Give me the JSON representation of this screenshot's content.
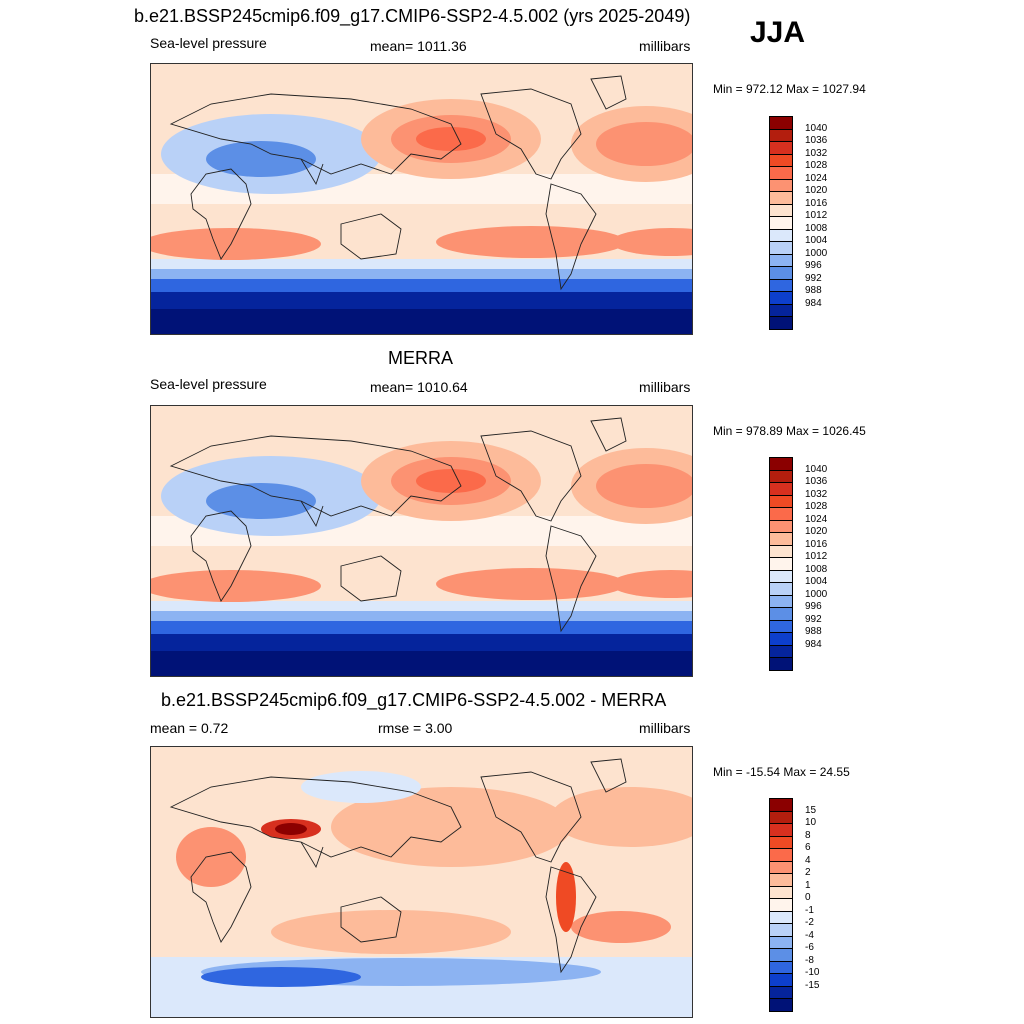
{
  "season": "JJA",
  "panels": [
    {
      "title": "b.e21.BSSP245cmip6.f09_g17.CMIP6-SSP2-4.5.002 (yrs 2025-2049)",
      "left": "Sea-level pressure",
      "center": "mean= 1011.36",
      "right": "millibars",
      "minmax": "Min = 972.12 Max = 1027.94"
    },
    {
      "title": "MERRA",
      "left": "Sea-level pressure",
      "center": "mean= 1010.64",
      "right": "millibars",
      "minmax": "Min = 978.89 Max = 1026.45"
    },
    {
      "title": "b.e21.BSSP245cmip6.f09_g17.CMIP6-SSP2-4.5.002 - MERRA",
      "left": "mean =   0.72",
      "center": "rmse =   3.00",
      "right": "millibars",
      "minmax": "Min = -15.54 Max =  24.55"
    }
  ],
  "chart_data": [
    {
      "type": "heatmap",
      "title": "b.e21.BSSP245cmip6.f09_g17.CMIP6-SSP2-4.5.002 (yrs 2025-2049)",
      "variable": "Sea-level pressure",
      "units": "millibars",
      "mean": 1011.36,
      "min": 972.12,
      "max": 1027.94,
      "colorbar_levels": [
        1040,
        1036,
        1032,
        1028,
        1024,
        1020,
        1016,
        1012,
        1008,
        1004,
        1000,
        996,
        992,
        988,
        984
      ],
      "colors": [
        "#8b0000",
        "#b31e0e",
        "#d7301f",
        "#ef4a24",
        "#fb6a4a",
        "#fc9272",
        "#fdbb9a",
        "#fde3cf",
        "#fff4ec",
        "#dbe8fb",
        "#b9d1f7",
        "#8cb3f2",
        "#5c8fe6",
        "#2f66e0",
        "#0d3fcc",
        "#05249c",
        "#001277"
      ]
    },
    {
      "type": "heatmap",
      "title": "MERRA",
      "variable": "Sea-level pressure",
      "units": "millibars",
      "mean": 1010.64,
      "min": 978.89,
      "max": 1026.45,
      "colorbar_levels": [
        1040,
        1036,
        1032,
        1028,
        1024,
        1020,
        1016,
        1012,
        1008,
        1004,
        1000,
        996,
        992,
        988,
        984
      ],
      "colors": [
        "#8b0000",
        "#b31e0e",
        "#d7301f",
        "#ef4a24",
        "#fb6a4a",
        "#fc9272",
        "#fdbb9a",
        "#fde3cf",
        "#fff4ec",
        "#dbe8fb",
        "#b9d1f7",
        "#8cb3f2",
        "#5c8fe6",
        "#2f66e0",
        "#0d3fcc",
        "#05249c",
        "#001277"
      ]
    },
    {
      "type": "heatmap",
      "title": "b.e21.BSSP245cmip6.f09_g17.CMIP6-SSP2-4.5.002 - MERRA",
      "units": "millibars",
      "mean": 0.72,
      "rmse": 3.0,
      "min": -15.54,
      "max": 24.55,
      "colorbar_levels": [
        15,
        10,
        8,
        6,
        4,
        2,
        1,
        0,
        -1,
        -2,
        -4,
        -6,
        -8,
        -10,
        -15
      ],
      "colors": [
        "#8b0000",
        "#b31e0e",
        "#d7301f",
        "#ef4a24",
        "#fb6a4a",
        "#fc9272",
        "#fdbb9a",
        "#fde3cf",
        "#fff4ec",
        "#dbe8fb",
        "#b9d1f7",
        "#8cb3f2",
        "#5c8fe6",
        "#2f66e0",
        "#0d3fcc",
        "#05249c",
        "#001277"
      ]
    }
  ]
}
